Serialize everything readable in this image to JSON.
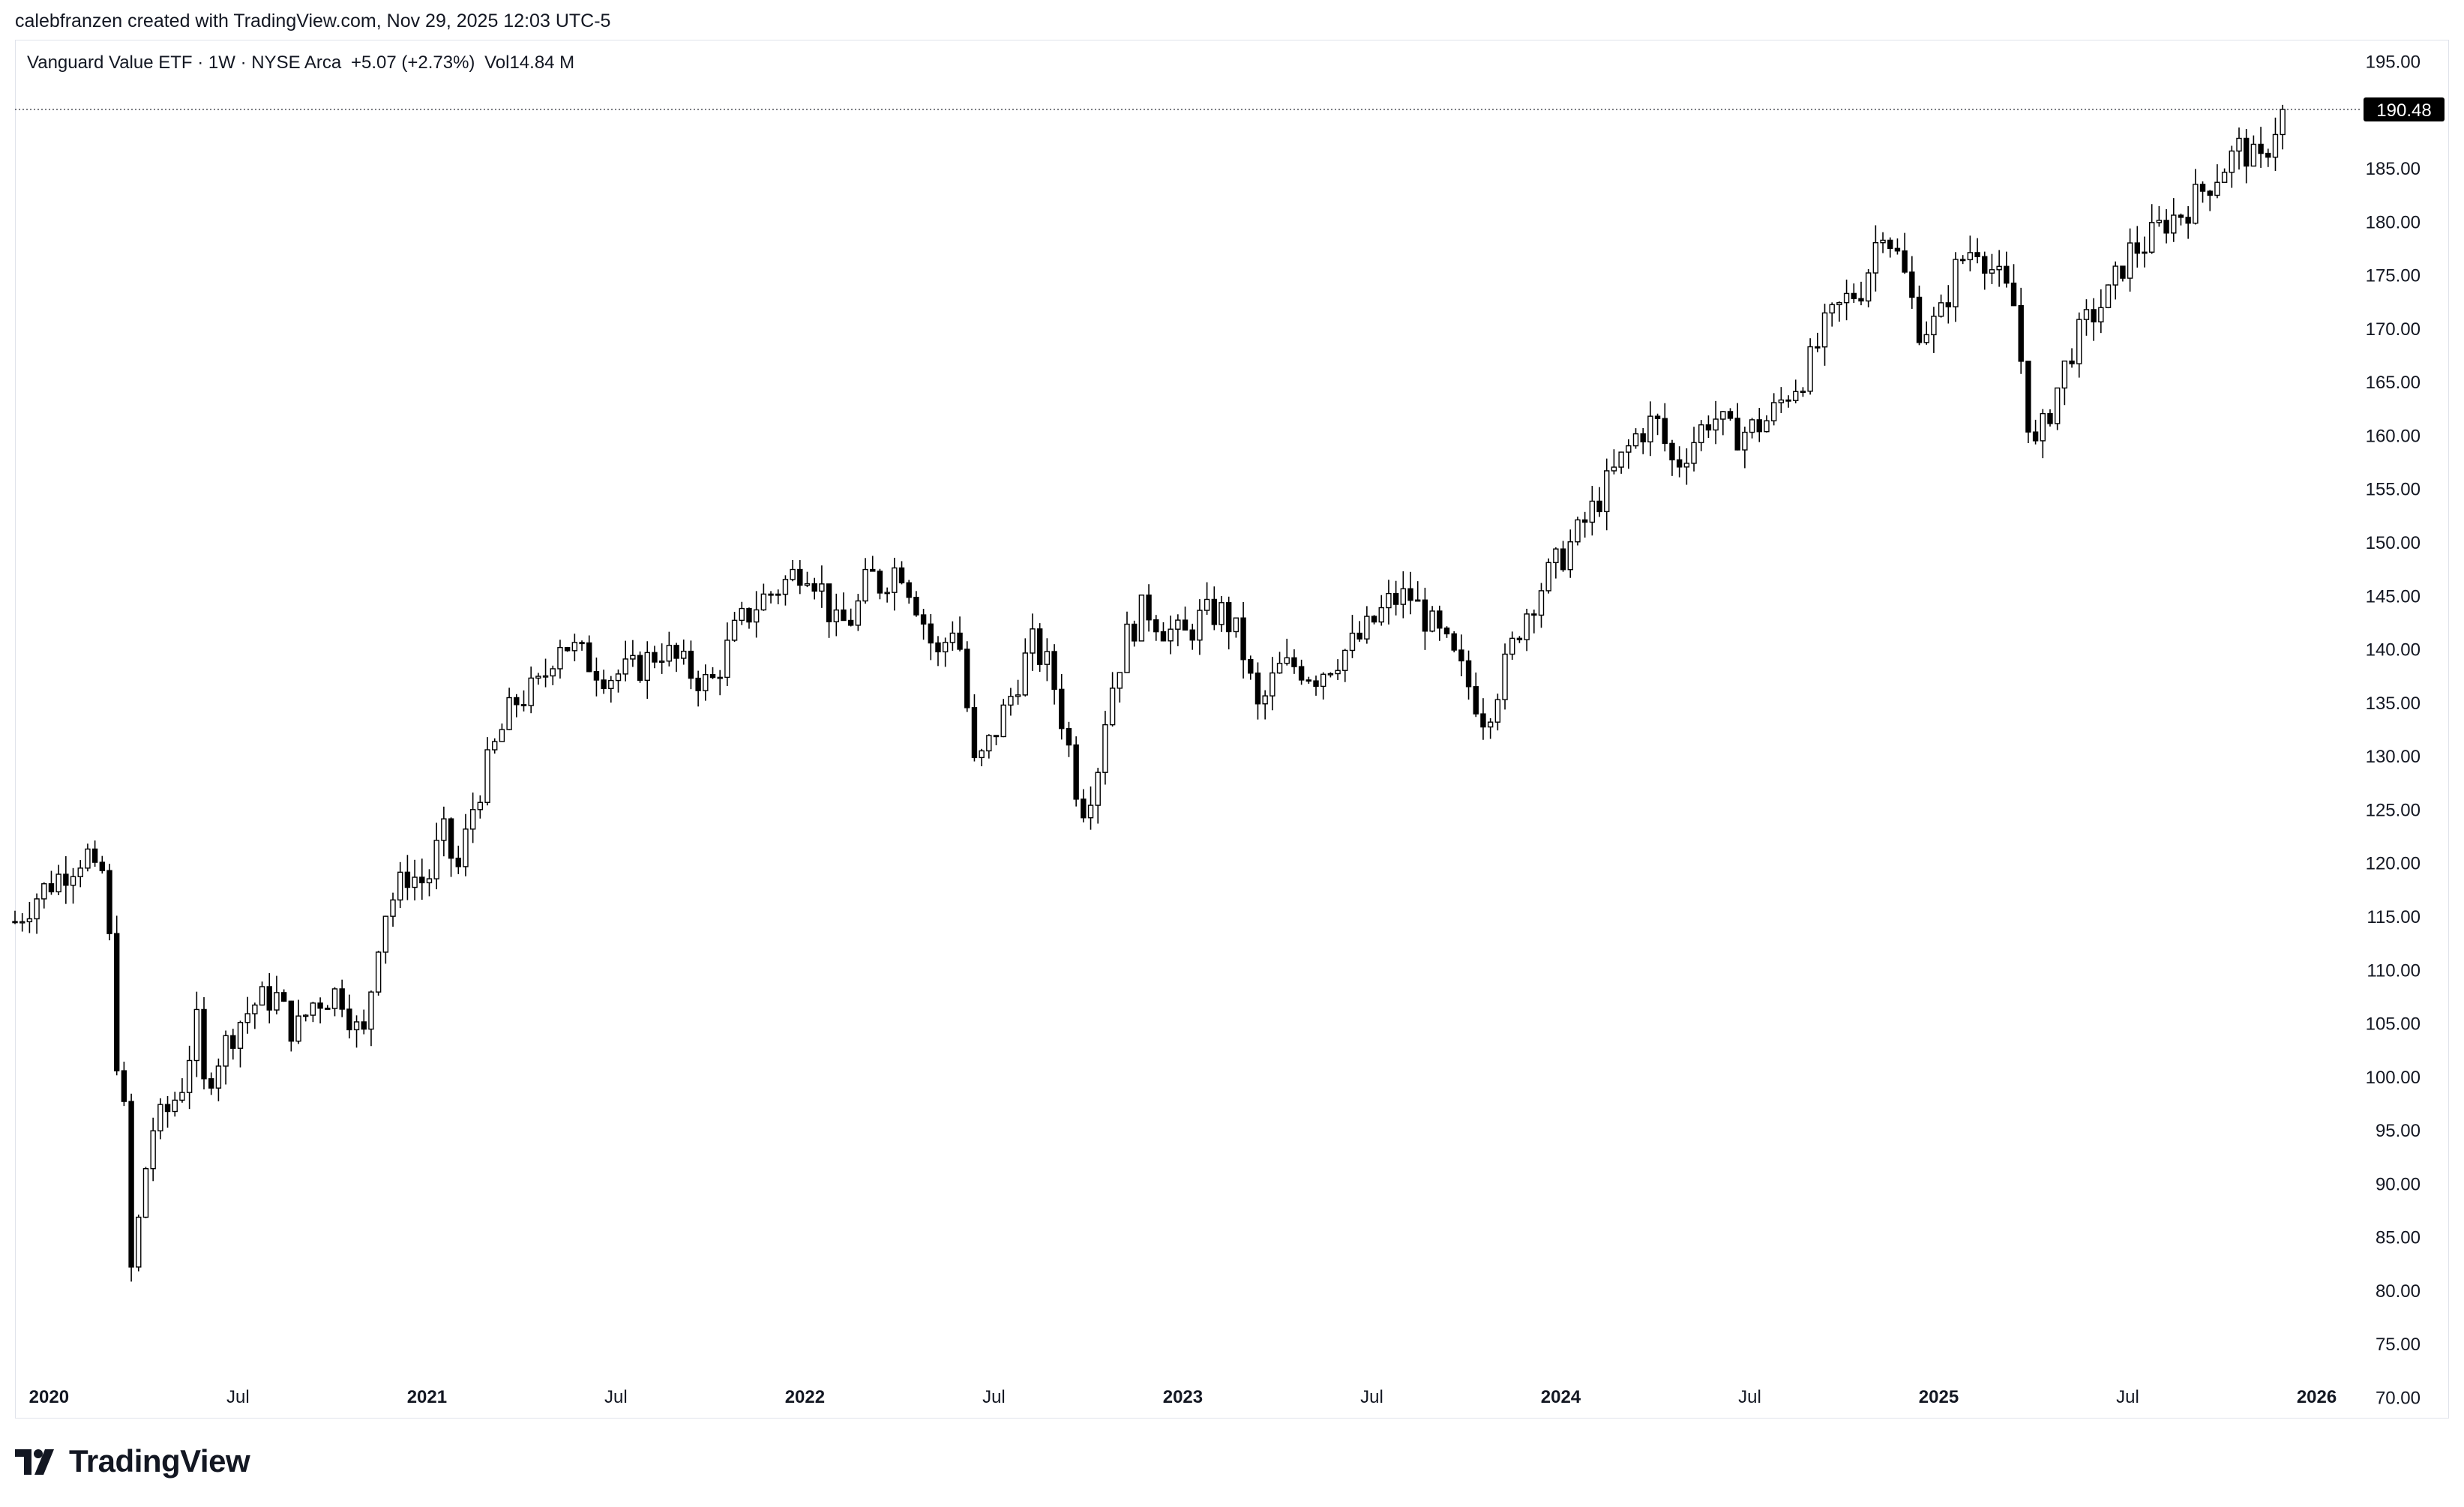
{
  "header": {
    "byline": "calebfranzen created with TradingView.com, Nov 29, 2025 12:03 UTC-5"
  },
  "legend": {
    "symbol": "Vanguard Value ETF · 1W · NYSE Arca",
    "change": "+5.07 (+2.73%)",
    "volume_label": "Vol",
    "volume_value": "14.84 M"
  },
  "branding": {
    "logo_text": "TradingView",
    "logo_icon": "tradingview-logo-icon"
  },
  "colors": {
    "candle": "#000000",
    "up_fill": "#ffffff",
    "grid_border": "#e0e3eb",
    "price_label_bg": "#000000",
    "price_label_text": "#ffffff",
    "text": "#131722"
  },
  "chart_data": {
    "type": "candlestick",
    "title": "Vanguard Value ETF · 1W · NYSE Arca",
    "xlabel": "",
    "ylabel": "",
    "ylim": [
      68,
      197
    ],
    "y_ticks": [
      "195.00",
      "190.00",
      "185.00",
      "180.00",
      "175.00",
      "170.00",
      "165.00",
      "160.00",
      "155.00",
      "150.00",
      "145.00",
      "140.00",
      "135.00",
      "130.00",
      "125.00",
      "120.00",
      "115.00",
      "110.00",
      "105.00",
      "100.00",
      "95.00",
      "90.00",
      "85.00",
      "80.00",
      "75.00",
      "70.00"
    ],
    "x_ticks": [
      {
        "label": "2020",
        "t": 2020.0,
        "bold": true
      },
      {
        "label": "Jul",
        "t": 2020.5,
        "bold": false
      },
      {
        "label": "2021",
        "t": 2021.0,
        "bold": true
      },
      {
        "label": "Jul",
        "t": 2021.5,
        "bold": false
      },
      {
        "label": "2022",
        "t": 2022.0,
        "bold": true
      },
      {
        "label": "Jul",
        "t": 2022.5,
        "bold": false
      },
      {
        "label": "2023",
        "t": 2023.0,
        "bold": true
      },
      {
        "label": "Jul",
        "t": 2023.5,
        "bold": false
      },
      {
        "label": "2024",
        "t": 2024.0,
        "bold": true
      },
      {
        "label": "Jul",
        "t": 2024.5,
        "bold": false
      },
      {
        "label": "2025",
        "t": 2025.0,
        "bold": true
      },
      {
        "label": "Jul",
        "t": 2025.5,
        "bold": false
      },
      {
        "label": "2026",
        "t": 2026.0,
        "bold": true
      }
    ],
    "last_price": 190.48,
    "last_price_label": "190.48",
    "anchors": [
      [
        2019.91,
        114.5
      ],
      [
        2019.97,
        117
      ],
      [
        2020.05,
        119.5
      ],
      [
        2020.1,
        121
      ],
      [
        2020.13,
        117.5
      ],
      [
        2020.15,
        120.5
      ],
      [
        2020.17,
        104.5
      ],
      [
        2020.2,
        96
      ],
      [
        2020.22,
        80
      ],
      [
        2020.24,
        87.5
      ],
      [
        2020.27,
        95
      ],
      [
        2020.31,
        96.5
      ],
      [
        2020.35,
        99
      ],
      [
        2020.39,
        105
      ],
      [
        2020.41,
        99
      ],
      [
        2020.45,
        102
      ],
      [
        2020.5,
        105
      ],
      [
        2020.55,
        107
      ],
      [
        2020.6,
        107.5
      ],
      [
        2020.65,
        104
      ],
      [
        2020.7,
        107
      ],
      [
        2020.77,
        108
      ],
      [
        2020.83,
        103
      ],
      [
        2020.88,
        115
      ],
      [
        2020.95,
        119
      ],
      [
        2021.0,
        118
      ],
      [
        2021.04,
        123
      ],
      [
        2021.08,
        119
      ],
      [
        2021.12,
        125
      ],
      [
        2021.17,
        130
      ],
      [
        2021.23,
        135
      ],
      [
        2021.3,
        136.5
      ],
      [
        2021.35,
        141
      ],
      [
        2021.42,
        139
      ],
      [
        2021.48,
        137.5
      ],
      [
        2021.55,
        138
      ],
      [
        2021.62,
        140
      ],
      [
        2021.69,
        138
      ],
      [
        2021.75,
        136.5
      ],
      [
        2021.82,
        142
      ],
      [
        2021.88,
        144.5
      ],
      [
        2021.94,
        146
      ],
      [
        2022.0,
        148
      ],
      [
        2022.04,
        146
      ],
      [
        2022.08,
        142
      ],
      [
        2022.13,
        143
      ],
      [
        2022.17,
        147
      ],
      [
        2022.2,
        146
      ],
      [
        2022.25,
        148
      ],
      [
        2022.3,
        144
      ],
      [
        2022.35,
        139
      ],
      [
        2022.4,
        143
      ],
      [
        2022.45,
        128.5
      ],
      [
        2022.5,
        132
      ],
      [
        2022.55,
        136
      ],
      [
        2022.6,
        140.5
      ],
      [
        2022.65,
        138
      ],
      [
        2022.7,
        130.5
      ],
      [
        2022.73,
        125
      ],
      [
        2022.77,
        128
      ],
      [
        2022.8,
        135
      ],
      [
        2022.85,
        141
      ],
      [
        2022.9,
        144
      ],
      [
        2022.95,
        142
      ],
      [
        2023.0,
        141
      ],
      [
        2023.05,
        143
      ],
      [
        2023.1,
        143.5
      ],
      [
        2023.15,
        141
      ],
      [
        2023.2,
        134
      ],
      [
        2023.25,
        138
      ],
      [
        2023.3,
        138.5
      ],
      [
        2023.35,
        137.5
      ],
      [
        2023.4,
        139
      ],
      [
        2023.47,
        141
      ],
      [
        2023.55,
        144.5
      ],
      [
        2023.6,
        145
      ],
      [
        2023.65,
        142.5
      ],
      [
        2023.7,
        140
      ],
      [
        2023.75,
        137
      ],
      [
        2023.8,
        133.5
      ],
      [
        2023.85,
        138
      ],
      [
        2023.9,
        143
      ],
      [
        2023.95,
        146
      ],
      [
        2024.0,
        148.5
      ],
      [
        2024.05,
        151
      ],
      [
        2024.1,
        154
      ],
      [
        2024.15,
        157
      ],
      [
        2024.2,
        160
      ],
      [
        2024.25,
        161.5
      ],
      [
        2024.3,
        157
      ],
      [
        2024.35,
        159.5
      ],
      [
        2024.4,
        162
      ],
      [
        2024.45,
        160
      ],
      [
        2024.5,
        160.5
      ],
      [
        2024.55,
        161.5
      ],
      [
        2024.6,
        164
      ],
      [
        2024.65,
        166
      ],
      [
        2024.7,
        170
      ],
      [
        2024.75,
        172.5
      ],
      [
        2024.8,
        174
      ],
      [
        2024.85,
        180
      ],
      [
        2024.9,
        176
      ],
      [
        2024.95,
        170
      ],
      [
        2025.0,
        170.5
      ],
      [
        2025.05,
        176
      ],
      [
        2025.1,
        178
      ],
      [
        2025.15,
        175
      ],
      [
        2025.2,
        172
      ],
      [
        2025.25,
        158
      ],
      [
        2025.3,
        163
      ],
      [
        2025.35,
        168
      ],
      [
        2025.4,
        171
      ],
      [
        2025.45,
        173
      ],
      [
        2025.5,
        177
      ],
      [
        2025.55,
        178
      ],
      [
        2025.6,
        180
      ],
      [
        2025.65,
        181
      ],
      [
        2025.7,
        183
      ],
      [
        2025.75,
        185
      ],
      [
        2025.8,
        187
      ],
      [
        2025.85,
        185
      ],
      [
        2025.88,
        188
      ],
      [
        2025.91,
        190.48
      ]
    ]
  }
}
